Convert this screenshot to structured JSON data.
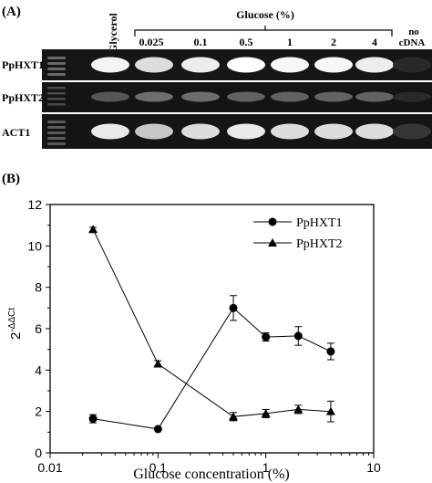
{
  "panel_a": {
    "label": "(A)",
    "lane_header": "Glucose (%)",
    "lanes": [
      "Glycerol",
      "0.025",
      "0.1",
      "0.5",
      "1",
      "2",
      "4",
      "no\ncDNA"
    ],
    "no_cdna_line1": "no",
    "no_cdna_line2": "cDNA",
    "rows": [
      {
        "label": "PpHXT1",
        "intensity": [
          0.0,
          0.95,
          0.85,
          0.92,
          1.0,
          0.96,
          0.97,
          0.92,
          0.05
        ]
      },
      {
        "label": "PpHXT2",
        "intensity": [
          0.0,
          0.25,
          0.35,
          0.35,
          0.3,
          0.3,
          0.3,
          0.3,
          0.05
        ]
      },
      {
        "label": "ACT1",
        "intensity": [
          0.0,
          0.9,
          0.75,
          0.85,
          0.9,
          0.85,
          0.85,
          0.85,
          0.1
        ]
      }
    ]
  },
  "panel_b": {
    "label": "(B)"
  },
  "chart_data": {
    "type": "line",
    "xlabel": "Glucose concentration (%)",
    "ylabel": "2-ΔΔCt",
    "ylabel_base": "2",
    "ylabel_sup": "-ΔΔCt",
    "xscale": "log",
    "xlim": [
      0.01,
      10
    ],
    "ylim": [
      0,
      12
    ],
    "x_ticks": [
      "0.01",
      "0.1",
      "1",
      "10"
    ],
    "y_ticks": [
      "0",
      "2",
      "4",
      "6",
      "8",
      "10",
      "12"
    ],
    "legend_position": "top-right",
    "series": [
      {
        "name": "PpHXT1",
        "marker": "circle",
        "x": [
          0.025,
          0.1,
          0.5,
          1,
          2,
          4
        ],
        "y": [
          1.65,
          1.15,
          7.0,
          5.6,
          5.65,
          4.9
        ],
        "err": [
          0.2,
          0.05,
          0.6,
          0.2,
          0.45,
          0.4
        ]
      },
      {
        "name": "PpHXT2",
        "marker": "triangle",
        "x": [
          0.025,
          0.1,
          0.5,
          1,
          2,
          4
        ],
        "y": [
          10.8,
          4.3,
          1.75,
          1.9,
          2.1,
          2.0
        ],
        "err": [
          0.1,
          0.15,
          0.2,
          0.2,
          0.2,
          0.5
        ]
      }
    ]
  }
}
